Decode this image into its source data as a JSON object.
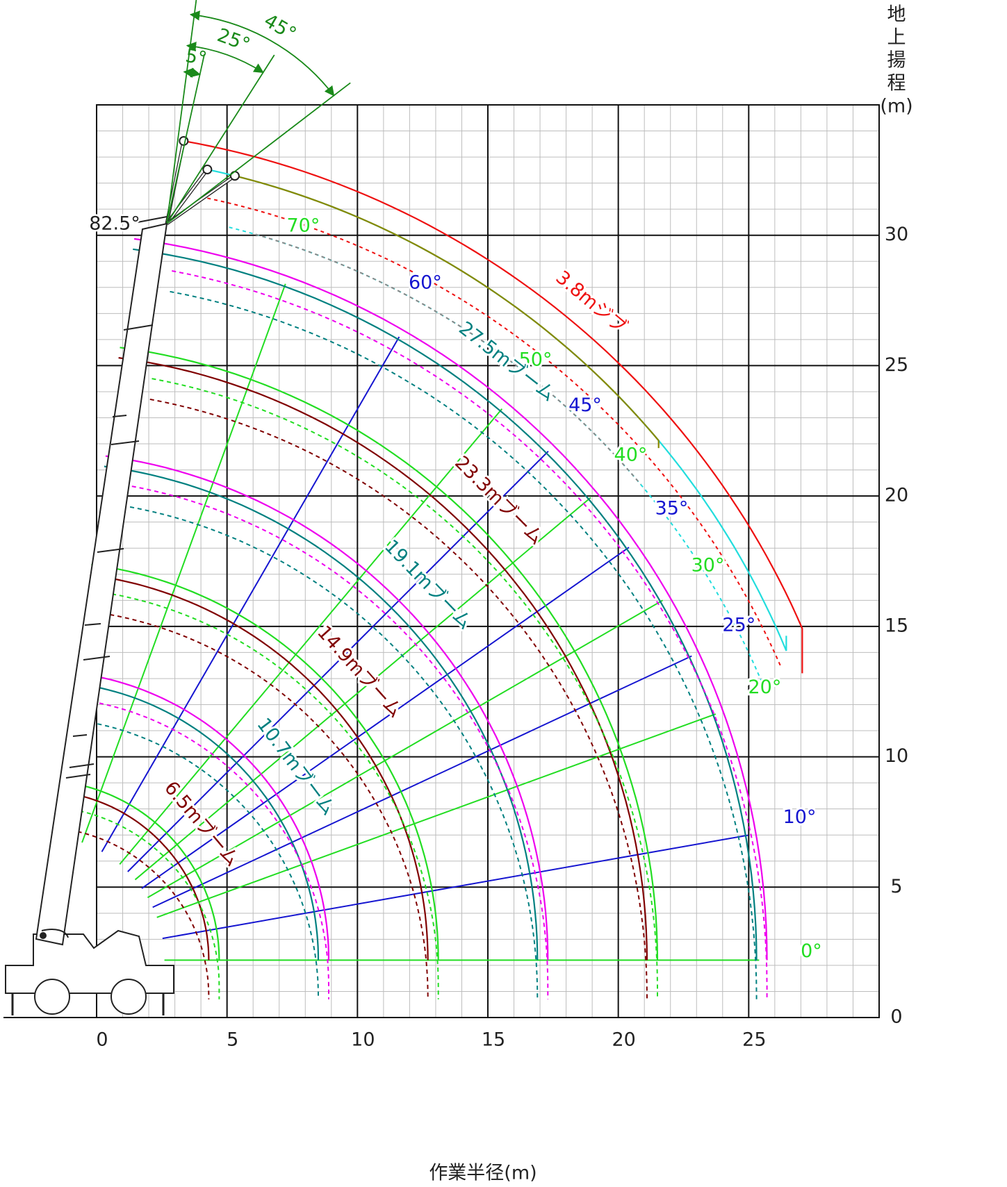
{
  "chart_data": {
    "type": "working-range",
    "x_label": "作業半径(m)",
    "y_label": [
      "地",
      "上",
      "揚",
      "程",
      "(m)"
    ],
    "xlim": [
      0,
      30
    ],
    "ylim": [
      0,
      35
    ],
    "xticks": [
      0,
      5,
      10,
      15,
      20,
      25
    ],
    "yticks": [
      0,
      5,
      10,
      15,
      20,
      25,
      30
    ],
    "grid": true,
    "minor_grid": 1,
    "pivot": [
      -2.2,
      2.2
    ],
    "max_angle": 82.5,
    "max_angle_label": "82.5°",
    "booms": [
      {
        "length": 6.5,
        "label": "6.5mブーム",
        "color": "#800000",
        "outer_color": "#22dd22"
      },
      {
        "length": 10.7,
        "label": "10.7mブーム",
        "color": "#008080",
        "outer_color": "#ee00ee"
      },
      {
        "length": 14.9,
        "label": "14.9mブーム",
        "color": "#800000",
        "outer_color": "#22dd22"
      },
      {
        "length": 19.1,
        "label": "19.1mブーム",
        "color": "#008080",
        "outer_color": "#ee00ee"
      },
      {
        "length": 23.3,
        "label": "23.3mブーム",
        "color": "#800000",
        "outer_color": "#22dd22"
      },
      {
        "length": 27.5,
        "label": "27.5mブーム",
        "color": "#008080",
        "outer_color": "#ee00ee"
      }
    ],
    "jib": {
      "length": 3.8,
      "label": "3.8mジブ",
      "offsets": [
        5,
        25,
        45
      ],
      "offset_labels": [
        "5°",
        "25°",
        "45°"
      ],
      "colors": [
        "#ee1111",
        "#22dddd",
        "#888800"
      ],
      "annotation_color": "#1a8a1a"
    },
    "angles": {
      "values": [
        0,
        10,
        20,
        25,
        30,
        35,
        40,
        45,
        50,
        60,
        70
      ],
      "value_labels": [
        "0°",
        "10°",
        "20°",
        "25°",
        "30°",
        "35°",
        "40°",
        "45°",
        "50°",
        "60°",
        "70°"
      ],
      "colors": [
        "#22dd22",
        "#1515d0",
        "#22dd22",
        "#1515d0",
        "#22dd22",
        "#1515d0",
        "#22dd22",
        "#1515d0",
        "#22dd22",
        "#1515d0",
        "#22dd22"
      ]
    }
  }
}
